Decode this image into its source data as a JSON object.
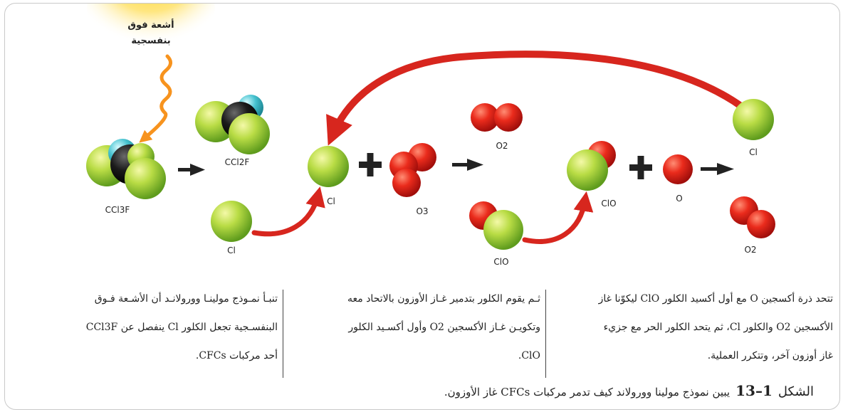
{
  "uv_label": [
    "أشعة فوق",
    "بنفسجية"
  ],
  "molecules": {
    "ccl3f": "CCl3F",
    "ccl2f": "CCl2F",
    "cl_top": "Cl",
    "cl_bottom": "Cl",
    "o3": "O3",
    "o2_top": "O2",
    "clo_bottom": "ClO",
    "clo_mid": "ClO",
    "o_atom": "O",
    "cl_right": "Cl",
    "o2_right": "O2"
  },
  "operators": {
    "plus": "+",
    "arrow": "→"
  },
  "descriptions": {
    "right": [
      "تتحد ذرة أكسجين O مع أول أكسيد الكلور ClO ليكوّنا غاز",
      "الأكسجين O2 والكلور Cl، ثم يتحد الكلور الحر مع جزيء",
      "غاز أوزون آخر، وتتكرر العملية."
    ],
    "middle": [
      "ثـم يقوم الكلور بتدمير غـاز الأوزون بالاتحاد معه",
      "وتكويـن غـاز الأكسجين O2 وأول أكسـيد الكلور",
      "ClO."
    ],
    "left": [
      "تنبـأ نمـوذج مولينـا وورولانـد أن الأشـعة فـوق",
      "البنفسـجية تجعل الكلور Cl ينفصل عن CCl3F",
      "أحد مركبات CFCs."
    ]
  },
  "caption": {
    "label": "الشكل",
    "number": "1–13",
    "text": "يبين نموذج مولينا وورولاند كيف تدمر مركبات CFCs غاز الأوزون."
  },
  "colors": {
    "chlorine": "#9ccc3a",
    "carbon": "#1a1a1a",
    "fluorine": "#3fb6c4",
    "oxygen": "#e0251b",
    "arrow_red": "#d7261e",
    "uv_wavy": "#f7931e",
    "sun": "#ffd21a"
  }
}
